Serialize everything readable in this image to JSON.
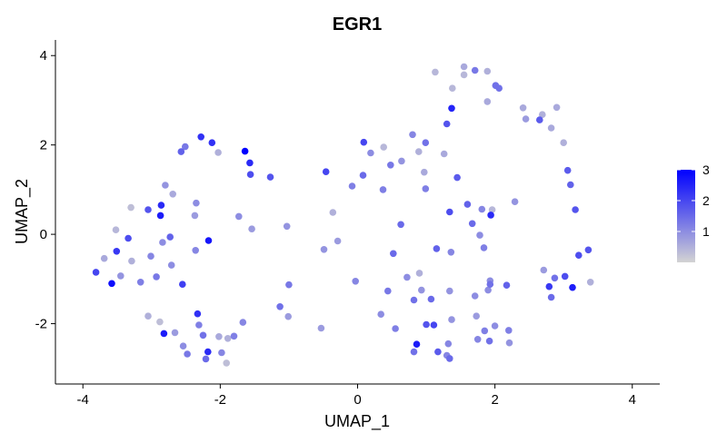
{
  "chart_data": {
    "type": "scatter",
    "title": "EGR1",
    "xlabel": "UMAP_1",
    "ylabel": "UMAP_2",
    "xlim": [
      -4.4,
      4.4
    ],
    "ylim": [
      -3.35,
      4.35
    ],
    "xticks": [
      -4,
      -2,
      0,
      2,
      4
    ],
    "yticks": [
      -2,
      0,
      2,
      4
    ],
    "grid": false,
    "legend": {
      "placement": "right",
      "type": "colorbar",
      "min": 0,
      "max": 3,
      "ticks": [
        1,
        2,
        3
      ],
      "low_color": "#d3d3d3",
      "high_color": "#0000ff"
    },
    "points": [
      {
        "x": -3.81,
        "y": -0.85,
        "v": 2.0
      },
      {
        "x": -3.69,
        "y": -0.54,
        "v": 0.6
      },
      {
        "x": -3.58,
        "y": -1.1,
        "v": 2.8
      },
      {
        "x": -3.52,
        "y": 0.1,
        "v": 0.4
      },
      {
        "x": -3.51,
        "y": -0.38,
        "v": 2.2
      },
      {
        "x": -3.45,
        "y": -0.93,
        "v": 0.9
      },
      {
        "x": -3.34,
        "y": -0.09,
        "v": 1.9
      },
      {
        "x": -3.3,
        "y": 0.6,
        "v": 0.3
      },
      {
        "x": -3.29,
        "y": -0.6,
        "v": 0.5
      },
      {
        "x": -3.16,
        "y": -1.07,
        "v": 1.2
      },
      {
        "x": -3.05,
        "y": -1.83,
        "v": 0.5
      },
      {
        "x": -3.05,
        "y": 0.55,
        "v": 1.8
      },
      {
        "x": -3.01,
        "y": -0.49,
        "v": 1.1
      },
      {
        "x": -2.93,
        "y": -0.95,
        "v": 1.3
      },
      {
        "x": -2.88,
        "y": -1.96,
        "v": 0.3
      },
      {
        "x": -2.87,
        "y": 0.42,
        "v": 2.6
      },
      {
        "x": -2.86,
        "y": 0.65,
        "v": 2.4
      },
      {
        "x": -2.84,
        "y": -0.18,
        "v": 1.0
      },
      {
        "x": -2.82,
        "y": -2.22,
        "v": 2.6
      },
      {
        "x": -2.8,
        "y": 1.1,
        "v": 0.9
      },
      {
        "x": -2.73,
        "y": -0.06,
        "v": 1.6
      },
      {
        "x": -2.71,
        "y": -0.69,
        "v": 1.0
      },
      {
        "x": -2.69,
        "y": 0.9,
        "v": 0.6
      },
      {
        "x": -2.66,
        "y": -2.2,
        "v": 0.8
      },
      {
        "x": -2.57,
        "y": 1.85,
        "v": 1.6
      },
      {
        "x": -2.55,
        "y": -1.12,
        "v": 2.1
      },
      {
        "x": -2.54,
        "y": -2.5,
        "v": 1.0
      },
      {
        "x": -2.51,
        "y": 1.96,
        "v": 1.3
      },
      {
        "x": -2.48,
        "y": -2.68,
        "v": 1.3
      },
      {
        "x": -2.37,
        "y": 0.42,
        "v": 0.8
      },
      {
        "x": -2.36,
        "y": -0.36,
        "v": 1.1
      },
      {
        "x": -2.35,
        "y": 0.7,
        "v": 1.0
      },
      {
        "x": -2.33,
        "y": -1.78,
        "v": 2.3
      },
      {
        "x": -2.31,
        "y": -2.03,
        "v": 1.2
      },
      {
        "x": -2.28,
        "y": 2.18,
        "v": 2.3
      },
      {
        "x": -2.25,
        "y": -2.26,
        "v": 1.4
      },
      {
        "x": -2.21,
        "y": -2.79,
        "v": 1.5
      },
      {
        "x": -2.18,
        "y": -2.63,
        "v": 2.4
      },
      {
        "x": -2.17,
        "y": -0.14,
        "v": 2.7
      },
      {
        "x": -2.12,
        "y": 2.05,
        "v": 2.3
      },
      {
        "x": -2.03,
        "y": 1.83,
        "v": 0.5
      },
      {
        "x": -2.02,
        "y": -2.29,
        "v": 0.6
      },
      {
        "x": -1.98,
        "y": -2.65,
        "v": 1.1
      },
      {
        "x": -1.91,
        "y": -2.88,
        "v": 0.3
      },
      {
        "x": -1.89,
        "y": -2.33,
        "v": 0.5
      },
      {
        "x": -1.8,
        "y": -2.28,
        "v": 1.2
      },
      {
        "x": -1.73,
        "y": 0.4,
        "v": 1.0
      },
      {
        "x": -1.67,
        "y": -1.97,
        "v": 1.1
      },
      {
        "x": -1.64,
        "y": 1.86,
        "v": 3.0
      },
      {
        "x": -1.57,
        "y": 1.6,
        "v": 2.4
      },
      {
        "x": -1.56,
        "y": 1.34,
        "v": 1.9
      },
      {
        "x": -1.54,
        "y": 0.12,
        "v": 0.8
      },
      {
        "x": -1.27,
        "y": 1.28,
        "v": 1.8
      },
      {
        "x": -1.13,
        "y": -1.62,
        "v": 1.4
      },
      {
        "x": -1.03,
        "y": 0.18,
        "v": 0.9
      },
      {
        "x": -1.01,
        "y": -1.84,
        "v": 0.8
      },
      {
        "x": -1.0,
        "y": -1.13,
        "v": 1.3
      },
      {
        "x": -0.53,
        "y": -2.1,
        "v": 0.8
      },
      {
        "x": -0.49,
        "y": -0.34,
        "v": 0.9
      },
      {
        "x": -0.46,
        "y": 1.4,
        "v": 2.0
      },
      {
        "x": -0.36,
        "y": 0.49,
        "v": 0.5
      },
      {
        "x": -0.29,
        "y": -0.15,
        "v": 0.8
      },
      {
        "x": -0.08,
        "y": 1.08,
        "v": 1.2
      },
      {
        "x": -0.03,
        "y": -1.05,
        "v": 1.1
      },
      {
        "x": 0.08,
        "y": 1.32,
        "v": 1.5
      },
      {
        "x": 0.09,
        "y": 2.06,
        "v": 2.0
      },
      {
        "x": 0.19,
        "y": 1.82,
        "v": 1.0
      },
      {
        "x": 0.34,
        "y": -1.79,
        "v": 1.0
      },
      {
        "x": 0.37,
        "y": 1.0,
        "v": 1.2
      },
      {
        "x": 0.38,
        "y": 1.95,
        "v": 0.4
      },
      {
        "x": 0.44,
        "y": -1.27,
        "v": 1.3
      },
      {
        "x": 0.48,
        "y": 1.55,
        "v": 1.3
      },
      {
        "x": 0.52,
        "y": -0.43,
        "v": 1.5
      },
      {
        "x": 0.55,
        "y": -2.11,
        "v": 1.2
      },
      {
        "x": 0.63,
        "y": 0.22,
        "v": 1.5
      },
      {
        "x": 0.64,
        "y": 1.64,
        "v": 0.9
      },
      {
        "x": 0.72,
        "y": -0.96,
        "v": 1.0
      },
      {
        "x": 0.8,
        "y": 2.23,
        "v": 1.1
      },
      {
        "x": 0.82,
        "y": -2.63,
        "v": 1.4
      },
      {
        "x": 0.82,
        "y": -1.47,
        "v": 1.4
      },
      {
        "x": 0.86,
        "y": -2.46,
        "v": 2.6
      },
      {
        "x": 0.89,
        "y": 1.85,
        "v": 0.5
      },
      {
        "x": 0.9,
        "y": -0.87,
        "v": 0.5
      },
      {
        "x": 0.93,
        "y": -1.25,
        "v": 0.9
      },
      {
        "x": 0.97,
        "y": 1.39,
        "v": 0.6
      },
      {
        "x": 0.99,
        "y": 2.05,
        "v": 1.4
      },
      {
        "x": 0.99,
        "y": 1.02,
        "v": 1.2
      },
      {
        "x": 1.0,
        "y": -2.02,
        "v": 1.8
      },
      {
        "x": 1.07,
        "y": -1.45,
        "v": 1.5
      },
      {
        "x": 1.11,
        "y": -2.03,
        "v": 2.0
      },
      {
        "x": 1.13,
        "y": 3.63,
        "v": 0.4
      },
      {
        "x": 1.15,
        "y": -0.32,
        "v": 1.6
      },
      {
        "x": 1.17,
        "y": -2.63,
        "v": 1.7
      },
      {
        "x": 1.26,
        "y": 1.8,
        "v": 0.6
      },
      {
        "x": 1.3,
        "y": -2.71,
        "v": 1.1
      },
      {
        "x": 1.3,
        "y": 2.47,
        "v": 1.8
      },
      {
        "x": 1.32,
        "y": -2.45,
        "v": 1.1
      },
      {
        "x": 1.34,
        "y": 0.5,
        "v": 1.9
      },
      {
        "x": 1.34,
        "y": -1.27,
        "v": 0.9
      },
      {
        "x": 1.34,
        "y": -2.78,
        "v": 1.5
      },
      {
        "x": 1.36,
        "y": -0.4,
        "v": 1.1
      },
      {
        "x": 1.37,
        "y": -1.91,
        "v": 0.9
      },
      {
        "x": 1.37,
        "y": 2.82,
        "v": 2.5
      },
      {
        "x": 1.38,
        "y": 3.27,
        "v": 0.4
      },
      {
        "x": 1.45,
        "y": 1.27,
        "v": 1.7
      },
      {
        "x": 1.55,
        "y": 3.75,
        "v": 0.6
      },
      {
        "x": 1.55,
        "y": 3.57,
        "v": 0.4
      },
      {
        "x": 1.6,
        "y": 0.67,
        "v": 1.6
      },
      {
        "x": 1.67,
        "y": 0.24,
        "v": 1.5
      },
      {
        "x": 1.71,
        "y": 3.67,
        "v": 1.3
      },
      {
        "x": 1.71,
        "y": -1.38,
        "v": 1.0
      },
      {
        "x": 1.73,
        "y": -1.83,
        "v": 0.8
      },
      {
        "x": 1.75,
        "y": -2.35,
        "v": 1.1
      },
      {
        "x": 1.78,
        "y": -0.02,
        "v": 1.0
      },
      {
        "x": 1.81,
        "y": 0.56,
        "v": 1.1
      },
      {
        "x": 1.84,
        "y": -0.3,
        "v": 1.2
      },
      {
        "x": 1.85,
        "y": -2.16,
        "v": 1.2
      },
      {
        "x": 1.89,
        "y": 3.65,
        "v": 0.5
      },
      {
        "x": 1.89,
        "y": 2.97,
        "v": 0.6
      },
      {
        "x": 1.9,
        "y": -1.25,
        "v": 1.0
      },
      {
        "x": 1.92,
        "y": -2.39,
        "v": 1.4
      },
      {
        "x": 1.93,
        "y": -1.12,
        "v": 1.4
      },
      {
        "x": 1.93,
        "y": -1.04,
        "v": 1.0
      },
      {
        "x": 1.94,
        "y": 0.43,
        "v": 2.4
      },
      {
        "x": 1.96,
        "y": 0.55,
        "v": 0.4
      },
      {
        "x": 2.0,
        "y": -2.05,
        "v": 1.0
      },
      {
        "x": 2.01,
        "y": 3.33,
        "v": 0.9
      },
      {
        "x": 2.01,
        "y": 3.33,
        "v": 1.4
      },
      {
        "x": 2.06,
        "y": 3.27,
        "v": 1.4
      },
      {
        "x": 2.17,
        "y": -1.14,
        "v": 1.6
      },
      {
        "x": 2.2,
        "y": -2.15,
        "v": 1.2
      },
      {
        "x": 2.21,
        "y": -2.43,
        "v": 0.9
      },
      {
        "x": 2.29,
        "y": 0.73,
        "v": 0.9
      },
      {
        "x": 2.41,
        "y": 2.83,
        "v": 0.6
      },
      {
        "x": 2.45,
        "y": 2.58,
        "v": 0.8
      },
      {
        "x": 2.65,
        "y": 2.56,
        "v": 1.7
      },
      {
        "x": 2.69,
        "y": 2.68,
        "v": 0.5
      },
      {
        "x": 2.71,
        "y": -0.8,
        "v": 0.8
      },
      {
        "x": 2.79,
        "y": -1.17,
        "v": 2.2
      },
      {
        "x": 2.82,
        "y": -1.41,
        "v": 1.5
      },
      {
        "x": 2.82,
        "y": 2.38,
        "v": 0.6
      },
      {
        "x": 2.87,
        "y": -0.98,
        "v": 1.4
      },
      {
        "x": 2.9,
        "y": 2.84,
        "v": 0.6
      },
      {
        "x": 3.0,
        "y": 2.05,
        "v": 0.5
      },
      {
        "x": 3.02,
        "y": -0.94,
        "v": 1.9
      },
      {
        "x": 3.06,
        "y": 1.43,
        "v": 1.7
      },
      {
        "x": 3.1,
        "y": 1.11,
        "v": 1.6
      },
      {
        "x": 3.13,
        "y": -1.19,
        "v": 2.6
      },
      {
        "x": 3.17,
        "y": 0.55,
        "v": 1.8
      },
      {
        "x": 3.22,
        "y": -0.47,
        "v": 1.9
      },
      {
        "x": 3.36,
        "y": -0.35,
        "v": 1.8
      },
      {
        "x": 3.39,
        "y": -1.07,
        "v": 0.5
      }
    ]
  }
}
